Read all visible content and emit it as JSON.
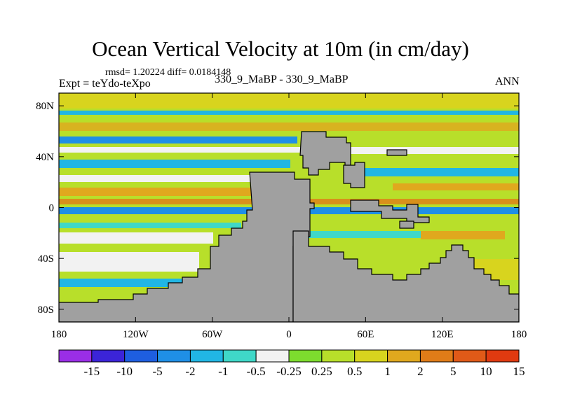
{
  "chart_data": {
    "type": "heatmap",
    "title": "Ocean Vertical Velocity at 10m (in cm/day)",
    "subtitle_stats": "rmsd= 1.20224 diff= 0.0184148",
    "experiment_label": "Expt = teYdo-teXpo",
    "experiment_names": "330_9_MaBP - 330_9_MaBP",
    "season": "ANN",
    "x_axis": {
      "range": [
        -180,
        180
      ],
      "ticks": [
        {
          "value": -180,
          "label": "180"
        },
        {
          "value": -120,
          "label": "120W"
        },
        {
          "value": -60,
          "label": "60W"
        },
        {
          "value": 0,
          "label": "0"
        },
        {
          "value": 60,
          "label": "60E"
        },
        {
          "value": 120,
          "label": "120E"
        },
        {
          "value": 180,
          "label": "180"
        }
      ]
    },
    "y_axis": {
      "range": [
        -90,
        90
      ],
      "ticks": [
        {
          "value": 80,
          "label": "80N"
        },
        {
          "value": 40,
          "label": "40N"
        },
        {
          "value": 0,
          "label": "0"
        },
        {
          "value": -40,
          "label": "40S"
        },
        {
          "value": -80,
          "label": "80S"
        }
      ]
    },
    "colorbar": {
      "colors": [
        "#9a2ee6",
        "#3b24d8",
        "#1e5ee0",
        "#1f8fe6",
        "#21b6e4",
        "#3fd8c8",
        "#f2f2f2",
        "#7ddc2e",
        "#b8df2a",
        "#d8d41e",
        "#e0a81e",
        "#e07c18",
        "#e05a18",
        "#e03a10"
      ],
      "labels": [
        "-15",
        "-10",
        "-5",
        "-2",
        "-1",
        "-0.5",
        "-0.25",
        "0.25",
        "0.5",
        "1",
        "2",
        "5",
        "10",
        "15"
      ]
    },
    "land_color": "#a0a0a0"
  }
}
